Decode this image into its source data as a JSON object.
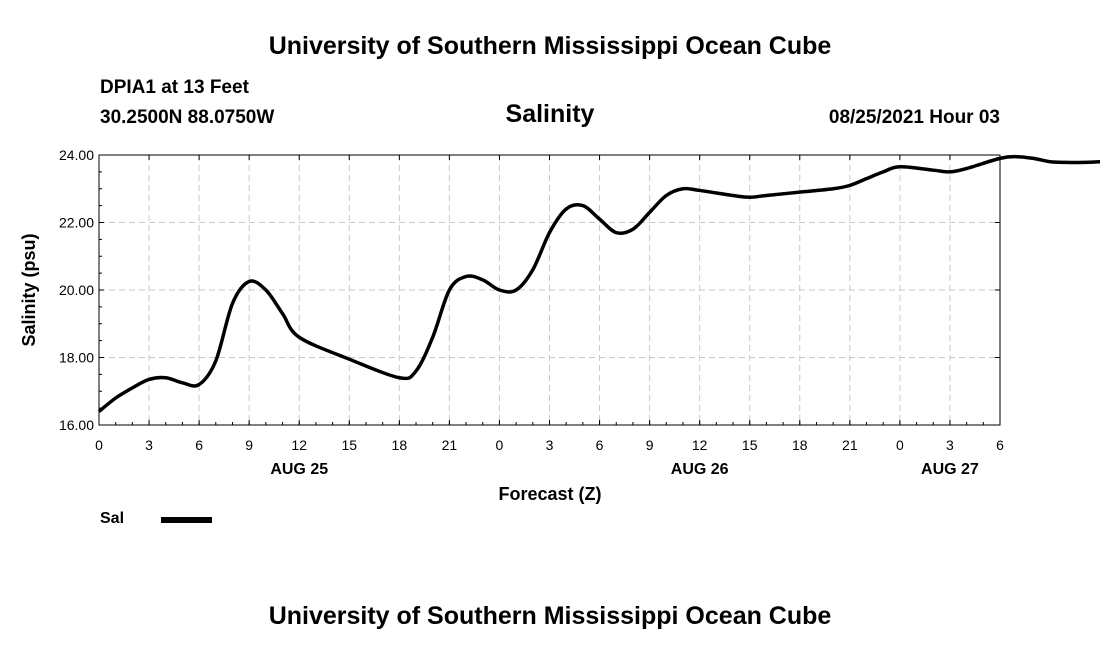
{
  "header": {
    "title_top": "University of Southern Mississippi Ocean Cube",
    "station": "DPIA1 at 13 Feet",
    "coords": "30.2500N  88.0750W",
    "variable": "Salinity",
    "timestamp": "08/25/2021 Hour 03",
    "title_bottom": "University of Southern Mississippi Ocean Cube"
  },
  "legend": {
    "label": "Sal"
  },
  "colors": {
    "line": "#000000",
    "grid": "#c8c8c8",
    "background": "#ffffff"
  },
  "chart_data": {
    "type": "line",
    "title": "Salinity",
    "xlabel": "Forecast (Z)",
    "ylabel": "Salinity (psu)",
    "ylim": [
      16,
      24
    ],
    "yticks": [
      "16.00",
      "18.00",
      "20.00",
      "22.00",
      "24.00"
    ],
    "xticks": [
      "0",
      "3",
      "6",
      "9",
      "12",
      "15",
      "18",
      "21",
      "0",
      "3",
      "6",
      "9",
      "12",
      "15",
      "18",
      "21",
      "0",
      "3",
      "6"
    ],
    "date_labels": [
      {
        "tick_index": 4,
        "label": "AUG 25"
      },
      {
        "tick_index": 12,
        "label": "AUG 26"
      },
      {
        "tick_index": 17,
        "label": "AUG 27"
      }
    ],
    "grid": true,
    "legend_position": "bottom-left",
    "series": [
      {
        "name": "Sal",
        "x_hours": [
          0,
          1,
          2,
          3,
          4,
          5,
          6,
          7,
          8,
          9,
          10,
          11,
          12,
          15,
          18,
          19,
          20,
          21,
          22,
          23,
          24,
          25,
          26,
          27,
          28,
          29,
          30,
          31,
          32,
          33,
          34,
          35,
          36,
          38,
          39,
          40,
          42,
          44,
          45,
          46,
          47,
          48,
          50,
          51,
          52,
          54
        ],
        "values": [
          16.4,
          16.8,
          17.1,
          17.35,
          17.4,
          17.25,
          17.2,
          17.9,
          19.6,
          20.25,
          20.0,
          19.3,
          18.6,
          17.95,
          17.4,
          17.6,
          18.6,
          20.0,
          20.4,
          20.3,
          20.0,
          20.0,
          20.6,
          21.7,
          22.4,
          22.5,
          22.1,
          21.7,
          21.8,
          22.3,
          22.8,
          23.0,
          22.95,
          22.8,
          22.75,
          22.8,
          22.9,
          23.0,
          23.1,
          23.3,
          23.5,
          23.65,
          23.55,
          23.5,
          23.6,
          23.9
        ]
      }
    ],
    "series_tail": {
      "x_hours": [
        55,
        56,
        57,
        58,
        59,
        60
      ],
      "values": [
        23.95,
        23.9,
        23.8,
        23.78,
        23.78,
        23.8
      ]
    }
  }
}
